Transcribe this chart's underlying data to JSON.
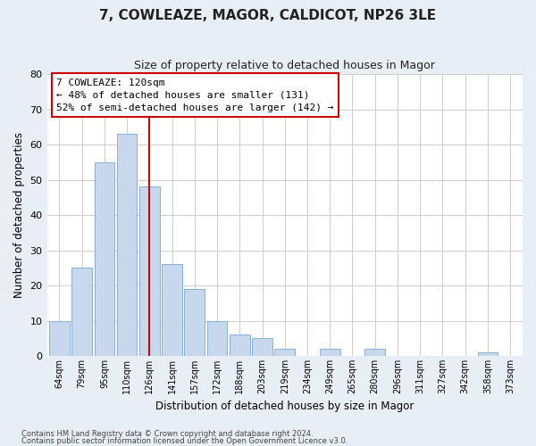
{
  "title": "7, COWLEAZE, MAGOR, CALDICOT, NP26 3LE",
  "subtitle": "Size of property relative to detached houses in Magor",
  "xlabel": "Distribution of detached houses by size in Magor",
  "ylabel": "Number of detached properties",
  "categories": [
    "64sqm",
    "79sqm",
    "95sqm",
    "110sqm",
    "126sqm",
    "141sqm",
    "157sqm",
    "172sqm",
    "188sqm",
    "203sqm",
    "219sqm",
    "234sqm",
    "249sqm",
    "265sqm",
    "280sqm",
    "296sqm",
    "311sqm",
    "327sqm",
    "342sqm",
    "358sqm",
    "373sqm"
  ],
  "values": [
    10,
    25,
    55,
    63,
    48,
    26,
    19,
    10,
    6,
    5,
    2,
    0,
    2,
    0,
    2,
    0,
    0,
    0,
    0,
    1,
    0
  ],
  "bar_color": "#c8d8ec",
  "bar_edge_color": "#8aafd4",
  "highlight_index": 4,
  "highlight_line_color": "#cc0000",
  "annotation_box_color": "#ffffff",
  "annotation_box_edge_color": "#cc0000",
  "annotation_title": "7 COWLEAZE: 120sqm",
  "annotation_line1": "← 48% of detached houses are smaller (131)",
  "annotation_line2": "52% of semi-detached houses are larger (142) →",
  "ylim": [
    0,
    80
  ],
  "yticks": [
    0,
    10,
    20,
    30,
    40,
    50,
    60,
    70,
    80
  ],
  "footnote1": "Contains HM Land Registry data © Crown copyright and database right 2024.",
  "footnote2": "Contains public sector information licensed under the Open Government Licence v3.0.",
  "background_color": "#e8eef5",
  "plot_background_color": "#ffffff",
  "grid_color": "#cccccc"
}
